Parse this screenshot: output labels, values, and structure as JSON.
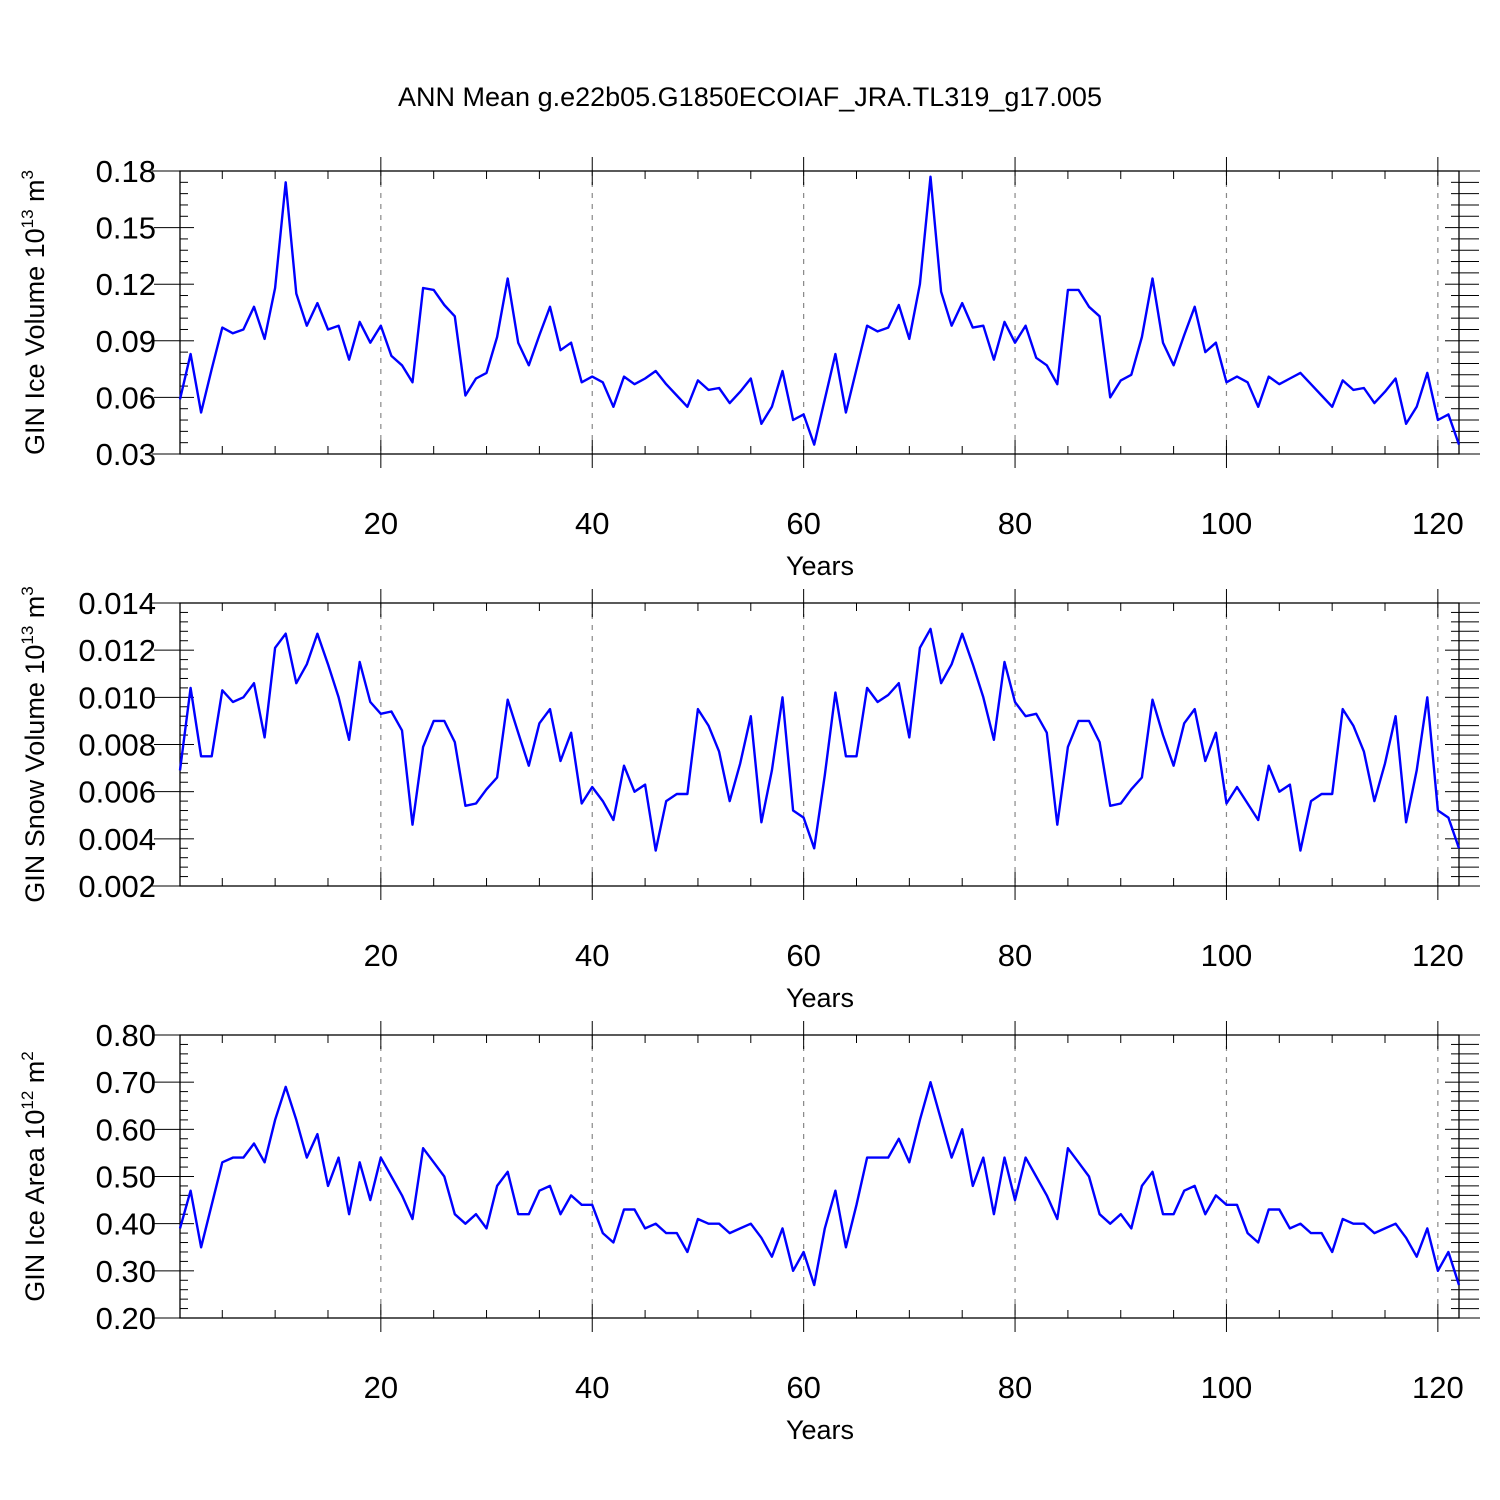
{
  "title": "ANN Mean g.e22b05.G1850ECOIAF_JRA.TL319_g17.005",
  "colors": {
    "line": "#0000ff",
    "grid": "#888888",
    "axis": "#000000"
  },
  "chart_data": [
    {
      "type": "line",
      "ylabel": "GIN Ice Volume 10",
      "ylabel_exp": "13",
      "ylabel_unit": " m",
      "ylabel_unit_exp": "3",
      "xlabel": "Years",
      "xlim": [
        1,
        122
      ],
      "ylim": [
        0.03,
        0.18
      ],
      "xticks": [
        20,
        40,
        60,
        80,
        100,
        120
      ],
      "xtick_labels": [
        "20",
        "40",
        "60",
        "80",
        "100",
        "120"
      ],
      "yticks": [
        0.03,
        0.06,
        0.09,
        0.12,
        0.15,
        0.18
      ],
      "ytick_labels": [
        "0.03",
        "0.06",
        "0.09",
        "0.12",
        "0.15",
        "0.18"
      ],
      "x_start": 1,
      "series": [
        {
          "name": "GIN Ice Volume",
          "values": [
            0.059,
            0.083,
            0.052,
            0.075,
            0.097,
            0.094,
            0.096,
            0.108,
            0.091,
            0.118,
            0.174,
            0.115,
            0.098,
            0.11,
            0.096,
            0.098,
            0.08,
            0.1,
            0.089,
            0.098,
            0.082,
            0.077,
            0.068,
            0.118,
            0.117,
            0.109,
            0.103,
            0.061,
            0.07,
            0.073,
            0.092,
            0.123,
            0.089,
            0.077,
            0.093,
            0.108,
            0.085,
            0.089,
            0.068,
            0.071,
            0.068,
            0.055,
            0.071,
            0.067,
            0.07,
            0.074,
            0.067,
            0.061,
            0.055,
            0.069,
            0.064,
            0.065,
            0.057,
            0.063,
            0.07,
            0.046,
            0.055,
            0.074,
            0.048,
            0.051,
            0.035,
            0.059,
            0.083,
            0.052,
            0.075,
            0.098,
            0.095,
            0.097,
            0.109,
            0.091,
            0.12,
            0.177,
            0.116,
            0.098,
            0.11,
            0.097,
            0.098,
            0.08,
            0.1,
            0.089,
            0.098,
            0.081,
            0.077,
            0.067,
            0.117,
            0.117,
            0.108,
            0.103,
            0.06,
            0.069,
            0.072,
            0.092,
            0.123,
            0.089,
            0.077,
            0.093,
            0.108,
            0.084,
            0.089,
            0.068,
            0.071,
            0.068,
            0.055,
            0.071,
            0.067,
            0.07,
            0.073,
            0.067,
            0.061,
            0.055,
            0.069,
            0.064,
            0.065,
            0.057,
            0.063,
            0.07,
            0.046,
            0.055,
            0.073,
            0.048,
            0.051,
            0.035
          ]
        }
      ]
    },
    {
      "type": "line",
      "ylabel": "GIN Snow Volume 10",
      "ylabel_exp": "13",
      "ylabel_unit": " m",
      "ylabel_unit_exp": "3",
      "xlabel": "Years",
      "xlim": [
        1,
        122
      ],
      "ylim": [
        0.002,
        0.014
      ],
      "xticks": [
        20,
        40,
        60,
        80,
        100,
        120
      ],
      "xtick_labels": [
        "20",
        "40",
        "60",
        "80",
        "100",
        "120"
      ],
      "yticks": [
        0.002,
        0.004,
        0.006,
        0.008,
        0.01,
        0.012,
        0.014
      ],
      "ytick_labels": [
        "0.002",
        "0.004",
        "0.006",
        "0.008",
        "0.010",
        "0.012",
        "0.014"
      ],
      "x_start": 1,
      "series": [
        {
          "name": "GIN Snow Volume",
          "values": [
            0.0069,
            0.0104,
            0.0075,
            0.0075,
            0.0103,
            0.0098,
            0.01,
            0.0106,
            0.0083,
            0.0121,
            0.0127,
            0.0106,
            0.0114,
            0.0127,
            0.0114,
            0.01,
            0.0082,
            0.0115,
            0.0098,
            0.0093,
            0.0094,
            0.0086,
            0.0046,
            0.0079,
            0.009,
            0.009,
            0.0081,
            0.0054,
            0.0055,
            0.0061,
            0.0066,
            0.0099,
            0.0085,
            0.0071,
            0.0089,
            0.0095,
            0.0073,
            0.0085,
            0.0055,
            0.0062,
            0.0056,
            0.0048,
            0.0071,
            0.006,
            0.0063,
            0.0035,
            0.0056,
            0.0059,
            0.0059,
            0.0095,
            0.0088,
            0.0077,
            0.0056,
            0.0072,
            0.0092,
            0.0047,
            0.0069,
            0.01,
            0.0052,
            0.0049,
            0.0036,
            0.0067,
            0.0102,
            0.0075,
            0.0075,
            0.0104,
            0.0098,
            0.0101,
            0.0106,
            0.0083,
            0.0121,
            0.0129,
            0.0106,
            0.0114,
            0.0127,
            0.0114,
            0.01,
            0.0082,
            0.0115,
            0.0098,
            0.0092,
            0.0093,
            0.0085,
            0.0046,
            0.0079,
            0.009,
            0.009,
            0.0081,
            0.0054,
            0.0055,
            0.0061,
            0.0066,
            0.0099,
            0.0084,
            0.0071,
            0.0089,
            0.0095,
            0.0073,
            0.0085,
            0.0055,
            0.0062,
            0.0055,
            0.0048,
            0.0071,
            0.006,
            0.0063,
            0.0035,
            0.0056,
            0.0059,
            0.0059,
            0.0095,
            0.0088,
            0.0077,
            0.0056,
            0.0072,
            0.0092,
            0.0047,
            0.0069,
            0.01,
            0.0052,
            0.0049,
            0.0036
          ]
        }
      ]
    },
    {
      "type": "line",
      "ylabel": "GIN Ice Area 10",
      "ylabel_exp": "12",
      "ylabel_unit": " m",
      "ylabel_unit_exp": "2",
      "xlabel": "Years",
      "xlim": [
        1,
        122
      ],
      "ylim": [
        0.2,
        0.8
      ],
      "xticks": [
        20,
        40,
        60,
        80,
        100,
        120
      ],
      "xtick_labels": [
        "20",
        "40",
        "60",
        "80",
        "100",
        "120"
      ],
      "yticks": [
        0.2,
        0.3,
        0.4,
        0.5,
        0.6,
        0.7,
        0.8
      ],
      "ytick_labels": [
        "0.20",
        "0.30",
        "0.40",
        "0.50",
        "0.60",
        "0.70",
        "0.80"
      ],
      "x_start": 1,
      "series": [
        {
          "name": "GIN Ice Area",
          "values": [
            0.39,
            0.47,
            0.35,
            0.44,
            0.53,
            0.54,
            0.54,
            0.57,
            0.53,
            0.62,
            0.69,
            0.62,
            0.54,
            0.59,
            0.48,
            0.54,
            0.42,
            0.53,
            0.45,
            0.54,
            0.5,
            0.46,
            0.41,
            0.56,
            0.53,
            0.5,
            0.42,
            0.4,
            0.42,
            0.39,
            0.48,
            0.51,
            0.42,
            0.42,
            0.47,
            0.48,
            0.42,
            0.46,
            0.44,
            0.44,
            0.38,
            0.36,
            0.43,
            0.43,
            0.39,
            0.4,
            0.38,
            0.38,
            0.34,
            0.41,
            0.4,
            0.4,
            0.38,
            0.39,
            0.4,
            0.37,
            0.33,
            0.39,
            0.3,
            0.34,
            0.27,
            0.39,
            0.47,
            0.35,
            0.44,
            0.54,
            0.54,
            0.54,
            0.58,
            0.53,
            0.62,
            0.7,
            0.62,
            0.54,
            0.6,
            0.48,
            0.54,
            0.42,
            0.54,
            0.45,
            0.54,
            0.5,
            0.46,
            0.41,
            0.56,
            0.53,
            0.5,
            0.42,
            0.4,
            0.42,
            0.39,
            0.48,
            0.51,
            0.42,
            0.42,
            0.47,
            0.48,
            0.42,
            0.46,
            0.44,
            0.44,
            0.38,
            0.36,
            0.43,
            0.43,
            0.39,
            0.4,
            0.38,
            0.38,
            0.34,
            0.41,
            0.4,
            0.4,
            0.38,
            0.39,
            0.4,
            0.37,
            0.33,
            0.39,
            0.3,
            0.34,
            0.27
          ]
        }
      ]
    }
  ]
}
